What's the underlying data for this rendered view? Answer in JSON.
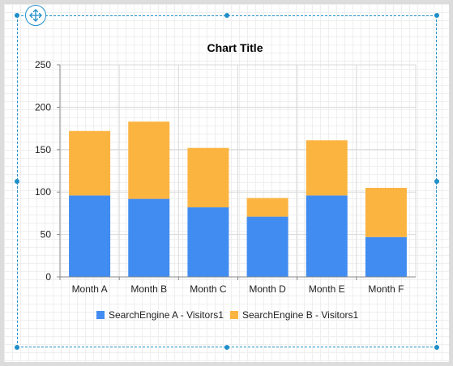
{
  "chart_data": {
    "type": "bar",
    "stacked": true,
    "title": "Chart Title",
    "categories": [
      "Month A",
      "Month B",
      "Month C",
      "Month D",
      "Month E",
      "Month F"
    ],
    "series": [
      {
        "name": "SearchEngine A - Visitors1",
        "color": "#418cf0",
        "values": [
          96,
          92,
          82,
          71,
          96,
          47
        ]
      },
      {
        "name": "SearchEngine B - Visitors1",
        "color": "#fcb441",
        "values": [
          76,
          91,
          70,
          22,
          65,
          58
        ]
      }
    ],
    "ylim": [
      0,
      250
    ],
    "yticks": [
      0,
      50,
      100,
      150,
      200,
      250
    ],
    "grid": true,
    "legend": "bottom"
  }
}
